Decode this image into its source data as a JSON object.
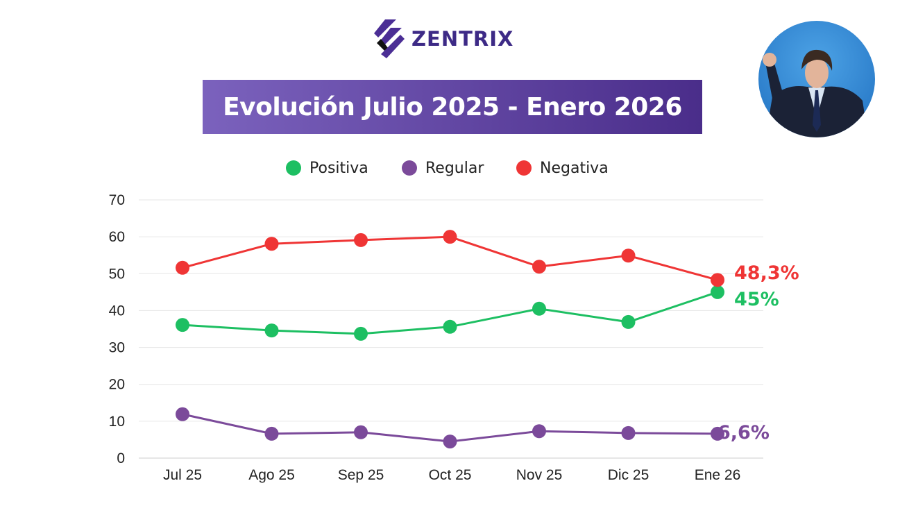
{
  "logo": {
    "text": "ZENTRIX"
  },
  "header": {
    "title": "Evolución Julio 2025 - Enero 2026"
  },
  "chart_data": {
    "type": "line",
    "categories": [
      "Jul 25",
      "Ago 25",
      "Sep 25",
      "Oct 25",
      "Nov 25",
      "Dic 25",
      "Ene 26"
    ],
    "ylim": [
      0,
      70
    ],
    "yticks": [
      0,
      10,
      20,
      30,
      40,
      50,
      60,
      70
    ],
    "grid": true,
    "legend_position": "top",
    "series": [
      {
        "name": "Positiva",
        "color": "#1dbf62",
        "values": [
          36.1,
          34.6,
          33.7,
          35.6,
          40.5,
          36.9,
          45
        ],
        "end_label": "45%"
      },
      {
        "name": "Regular",
        "color": "#7b4a9a",
        "values": [
          11.9,
          6.6,
          7.0,
          4.5,
          7.3,
          6.8,
          6.6
        ],
        "end_label": "6,6%"
      },
      {
        "name": "Negativa",
        "color": "#ef3535",
        "values": [
          51.6,
          58.1,
          59.1,
          60.0,
          51.9,
          54.9,
          48.3
        ],
        "end_label": "48,3%"
      }
    ]
  }
}
